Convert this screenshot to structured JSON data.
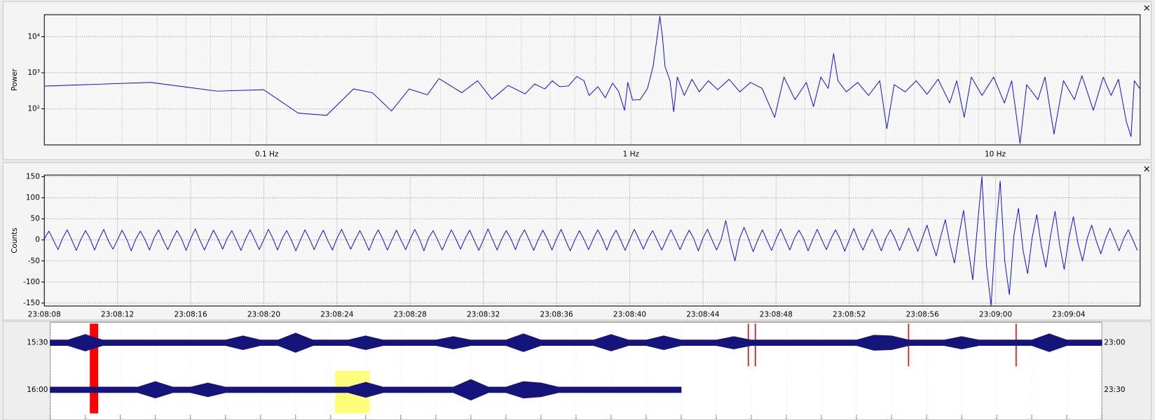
{
  "ui": {
    "close_spectrum": "×",
    "close_wave": "×"
  },
  "chart_data": [
    {
      "type": "line",
      "y_label": "Power",
      "xscale": "log",
      "yscale": "log",
      "grid": true,
      "color": "#0000ff",
      "xlim": [
        0.0245,
        25
      ],
      "ylim": [
        10,
        40700
      ],
      "xticks": [
        {
          "value": 0.1,
          "label": "0.1 Hz"
        },
        {
          "value": 1,
          "label": "1 Hz"
        },
        {
          "value": 10,
          "label": "10 Hz"
        }
      ],
      "minor_xticks": [
        0.03,
        0.04,
        0.05,
        0.06,
        0.07,
        0.08,
        0.09,
        0.2,
        0.3,
        0.4,
        0.5,
        0.6,
        0.7,
        0.8,
        0.9,
        2,
        3,
        4,
        5,
        6,
        7,
        8,
        9,
        20
      ],
      "yticks": [
        {
          "value": 100,
          "label": "10²"
        },
        {
          "value": 1000,
          "label": "10³"
        },
        {
          "value": 10000,
          "label": "10⁴"
        }
      ],
      "x": [
        0.0245,
        0.048,
        0.073,
        0.098,
        0.122,
        0.146,
        0.173,
        0.195,
        0.22,
        0.246,
        0.276,
        0.297,
        0.343,
        0.379,
        0.415,
        0.46,
        0.512,
        0.544,
        0.58,
        0.608,
        0.637,
        0.673,
        0.71,
        0.743,
        0.767,
        0.811,
        0.85,
        0.89,
        0.924,
        0.96,
        0.98,
        1.01,
        1.06,
        1.11,
        1.15,
        1.18,
        1.2,
        1.22,
        1.24,
        1.28,
        1.31,
        1.34,
        1.4,
        1.47,
        1.54,
        1.63,
        1.73,
        1.86,
        1.99,
        2.13,
        2.29,
        2.48,
        2.63,
        2.82,
        3.03,
        3.17,
        3.32,
        3.48,
        3.6,
        3.7,
        3.9,
        4.19,
        4.49,
        4.82,
        5.04,
        5.28,
        5.66,
        6.07,
        6.5,
        6.97,
        7.5,
        7.84,
        8.22,
        8.6,
        9.2,
        9.9,
        10.6,
        11.1,
        11.7,
        12.2,
        13.1,
        13.7,
        14.5,
        15.4,
        16.5,
        17.3,
        18.6,
        19.8,
        20.8,
        21.8,
        22.9,
        23.6,
        24.1,
        24.9
      ],
      "values": [
        427,
        540,
        310,
        340,
        76,
        66,
        355,
        280,
        87,
        355,
        245,
        690,
        280,
        600,
        185,
        445,
        260,
        490,
        355,
        600,
        410,
        430,
        790,
        600,
        235,
        410,
        203,
        515,
        310,
        91,
        540,
        175,
        180,
        370,
        1500,
        10000,
        37000,
        10000,
        1500,
        600,
        83,
        760,
        235,
        660,
        295,
        600,
        340,
        660,
        295,
        540,
        370,
        58,
        760,
        180,
        540,
        115,
        760,
        370,
        3400,
        600,
        295,
        540,
        235,
        600,
        28,
        470,
        295,
        600,
        255,
        660,
        145,
        600,
        58,
        760,
        235,
        760,
        145,
        600,
        11,
        470,
        180,
        760,
        20,
        600,
        180,
        830,
        91,
        760,
        235,
        660,
        45,
        17,
        600,
        370
      ]
    },
    {
      "type": "line",
      "y_label": "Counts",
      "grid": true,
      "color": "#0000ff",
      "xlim": [
        0,
        59.9
      ],
      "ylim": [
        -157,
        154
      ],
      "xticks": [
        {
          "value": 0,
          "label": "23:08:08"
        },
        {
          "value": 4,
          "label": "23:08:12"
        },
        {
          "value": 8,
          "label": "23:08:16"
        },
        {
          "value": 12,
          "label": "23:08:20"
        },
        {
          "value": 16,
          "label": "23:08:24"
        },
        {
          "value": 20,
          "label": "23:08:28"
        },
        {
          "value": 24,
          "label": "23:08:32"
        },
        {
          "value": 28,
          "label": "23:08:36"
        },
        {
          "value": 32,
          "label": "23:08:40"
        },
        {
          "value": 36,
          "label": "23:08:44"
        },
        {
          "value": 40,
          "label": "23:08:48"
        },
        {
          "value": 44,
          "label": "23:08:52"
        },
        {
          "value": 48,
          "label": "23:08:56"
        },
        {
          "value": 52,
          "label": "23:09:00"
        },
        {
          "value": 56,
          "label": "23:09:04"
        }
      ],
      "yticks": [
        -150,
        -100,
        -50,
        0,
        50,
        100,
        150
      ],
      "x": [
        0,
        0.25,
        0.5,
        0.75,
        1,
        1.25,
        1.5,
        1.75,
        2,
        2.25,
        2.5,
        2.75,
        3,
        3.25,
        3.5,
        3.75,
        4,
        4.25,
        4.5,
        4.75,
        5,
        5.25,
        5.5,
        5.75,
        6,
        6.25,
        6.5,
        6.75,
        7,
        7.25,
        7.5,
        7.75,
        8,
        8.25,
        8.5,
        8.75,
        9,
        9.25,
        9.5,
        9.75,
        10,
        10.25,
        10.5,
        10.75,
        11,
        11.25,
        11.5,
        11.75,
        12,
        12.25,
        12.5,
        12.75,
        13,
        13.25,
        13.5,
        13.75,
        14,
        14.25,
        14.5,
        14.75,
        15,
        15.25,
        15.5,
        15.75,
        16,
        16.25,
        16.5,
        16.75,
        17,
        17.25,
        17.5,
        17.75,
        18,
        18.25,
        18.5,
        18.75,
        19,
        19.25,
        19.5,
        19.75,
        20,
        20.25,
        20.5,
        20.75,
        21,
        21.25,
        21.5,
        21.75,
        22,
        22.25,
        22.5,
        22.75,
        23,
        23.25,
        23.5,
        23.75,
        24,
        24.25,
        24.5,
        24.75,
        25,
        25.25,
        25.5,
        25.75,
        26,
        26.25,
        26.5,
        26.75,
        27,
        27.25,
        27.5,
        27.75,
        28,
        28.25,
        28.5,
        28.75,
        29,
        29.25,
        29.5,
        29.75,
        30,
        30.25,
        30.5,
        30.75,
        31,
        31.25,
        31.5,
        31.75,
        32,
        32.25,
        32.5,
        32.75,
        33,
        33.25,
        33.5,
        33.75,
        34,
        34.25,
        34.5,
        34.75,
        35,
        35.25,
        35.5,
        35.75,
        36,
        36.25,
        36.5,
        36.75,
        37,
        37.25,
        37.5,
        37.75,
        38,
        38.25,
        38.5,
        38.75,
        39,
        39.25,
        39.5,
        39.75,
        40,
        40.25,
        40.5,
        40.75,
        41,
        41.25,
        41.5,
        41.75,
        42,
        42.25,
        42.5,
        42.75,
        43,
        43.25,
        43.5,
        43.75,
        44,
        44.25,
        44.5,
        44.75,
        45,
        45.25,
        45.5,
        45.75,
        46,
        46.25,
        46.5,
        46.75,
        47,
        47.25,
        47.5,
        47.75,
        48,
        48.25,
        48.5,
        48.75,
        49,
        49.25,
        49.5,
        49.75,
        50,
        50.25,
        50.5,
        50.75,
        51,
        51.25,
        51.5,
        51.75,
        52,
        52.25,
        52.5,
        52.75,
        53,
        53.25,
        53.5,
        53.75,
        54,
        54.25,
        54.5,
        54.75,
        55,
        55.25,
        55.5,
        55.75,
        56,
        56.25,
        56.5,
        56.75,
        57,
        57.25,
        57.5,
        57.75,
        58,
        58.25,
        58.5,
        58.75,
        59,
        59.25,
        59.5,
        59.75
      ],
      "values": [
        2,
        21,
        -1,
        -23,
        4,
        24,
        0,
        -25,
        1,
        22,
        3,
        -24,
        3,
        25,
        -2,
        -22,
        0,
        23,
        2,
        -26,
        2,
        21,
        1,
        -24,
        5,
        24,
        -1,
        -23,
        1,
        22,
        3,
        -25,
        3,
        26,
        0,
        -24,
        0,
        23,
        2,
        -22,
        4,
        22,
        -1,
        -25,
        2,
        24,
        1,
        -23,
        1,
        25,
        3,
        -24,
        3,
        22,
        0,
        -26,
        0,
        24,
        2,
        -23,
        2,
        23,
        -2,
        -24,
        4,
        25,
        1,
        -22,
        1,
        22,
        0,
        -25,
        3,
        24,
        2,
        -24,
        0,
        23,
        -1,
        -23,
        2,
        25,
        3,
        -26,
        4,
        22,
        0,
        -24,
        1,
        24,
        2,
        -22,
        3,
        23,
        -1,
        -25,
        0,
        26,
        1,
        -24,
        2,
        22,
        3,
        -23,
        5,
        24,
        0,
        -25,
        1,
        23,
        2,
        -24,
        3,
        25,
        -1,
        -26,
        0,
        22,
        1,
        -23,
        2,
        24,
        3,
        -24,
        4,
        23,
        0,
        -25,
        1,
        25,
        2,
        -22,
        3,
        22,
        -1,
        -24,
        0,
        24,
        1,
        -23,
        2,
        23,
        3,
        -26,
        4,
        25,
        0,
        -24,
        1,
        46,
        -8,
        -50,
        3,
        30,
        2,
        -28,
        0,
        24,
        -1,
        -25,
        2,
        26,
        1,
        -24,
        4,
        23,
        3,
        -26,
        1,
        25,
        0,
        -23,
        3,
        24,
        2,
        -27,
        0,
        27,
        -1,
        -24,
        2,
        25,
        1,
        -26,
        4,
        24,
        3,
        -25,
        1,
        28,
        0,
        -27,
        5,
        35,
        -4,
        -38,
        8,
        48,
        -10,
        -55,
        12,
        70,
        -20,
        -95,
        30,
        150,
        -60,
        -157,
        15,
        140,
        -50,
        -130,
        10,
        75,
        -25,
        -80,
        6,
        60,
        -15,
        -65,
        9,
        68,
        -12,
        -70,
        4,
        55,
        -8,
        -50,
        3,
        35,
        -2,
        -33,
        1,
        28,
        2,
        -26,
        3,
        24,
        0,
        -25
      ]
    },
    {
      "type": "helicorder",
      "color": "#14147a",
      "xlim": [
        0,
        30
      ],
      "ylim": [
        0,
        32
      ],
      "xticks": [
        0,
        1,
        2,
        3,
        4,
        5,
        6,
        7,
        8,
        9,
        10,
        11,
        12,
        13,
        14,
        15,
        16,
        17,
        18,
        19,
        20,
        21,
        22,
        23,
        24,
        25,
        26,
        27,
        28,
        29,
        30
      ],
      "x": [
        0,
        0.5,
        1,
        1.5,
        2,
        2.5,
        3,
        3.5,
        4,
        4.5,
        5,
        5.5,
        6,
        6.5,
        7,
        7.5,
        8,
        8.5,
        9,
        9.5,
        10,
        10.5,
        11,
        11.5,
        12,
        12.5,
        13,
        13.5,
        14,
        14.5,
        15,
        15.5,
        16,
        16.5,
        17,
        17.5,
        18,
        18.5,
        19,
        19.5,
        20,
        20.5,
        21,
        21.5,
        22,
        22.5,
        23,
        23.5,
        24,
        24.5,
        25,
        25.5,
        26,
        26.5,
        27,
        27.5,
        28,
        28.5,
        29,
        29.5,
        30
      ],
      "rows": [
        {
          "left_label": "15:30",
          "right_label": "23:00",
          "values": [
            4,
            4,
            12,
            4,
            4,
            4,
            4,
            4,
            4,
            4,
            4,
            10,
            4,
            4,
            14,
            4,
            4,
            4,
            10,
            4,
            4,
            4,
            4,
            9,
            4,
            4,
            4,
            13,
            4,
            4,
            4,
            4,
            12,
            4,
            4,
            10,
            4,
            4,
            4,
            9,
            4,
            4,
            4,
            4,
            4,
            4,
            4,
            11,
            10,
            4,
            4,
            4,
            9,
            4,
            4,
            4,
            4,
            13,
            4,
            4,
            4
          ]
        },
        {
          "left_label": "16:00",
          "right_label": "23:30",
          "values": [
            4,
            4,
            4,
            4,
            4,
            4,
            12,
            4,
            4,
            10,
            4,
            4,
            4,
            4,
            4,
            4,
            4,
            4,
            11,
            4,
            4,
            4,
            4,
            4,
            15,
            4,
            4,
            12,
            10,
            4,
            4,
            4,
            4,
            4,
            4,
            4,
            4,
            null,
            null,
            null,
            null,
            null,
            null,
            null,
            null,
            null,
            null,
            null,
            null,
            null,
            null,
            null,
            null,
            null,
            null,
            null,
            null,
            null,
            null,
            null,
            null
          ]
        }
      ],
      "markers": [
        {
          "start": 1.13,
          "end": 1.37,
          "rows": [
            0,
            1
          ],
          "color": "#ff0000"
        },
        {
          "start": 19.9,
          "end": 19.9,
          "rows": [
            0
          ],
          "color": "#ff0000"
        },
        {
          "start": 20.1,
          "end": 20.1,
          "rows": [
            0
          ],
          "color": "#ff0000"
        },
        {
          "start": 24.47,
          "end": 24.47,
          "rows": [
            0
          ],
          "color": "#ff0000"
        },
        {
          "start": 27.54,
          "end": 27.54,
          "rows": [
            0
          ],
          "color": "#ff0000"
        },
        {
          "start": 8.13,
          "end": 9.12,
          "rows": [
            1
          ],
          "color": "#ffff66"
        }
      ]
    }
  ]
}
